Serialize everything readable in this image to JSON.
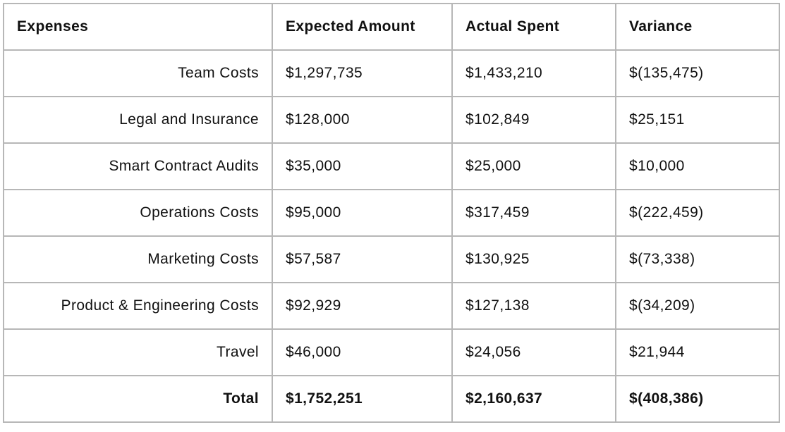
{
  "table": {
    "headers": [
      "Expenses",
      "Expected Amount",
      "Actual Spent",
      "Variance"
    ],
    "rows": [
      {
        "expense": "Team Costs",
        "expected": "$1,297,735",
        "actual": "$1,433,210",
        "variance": "$(135,475)"
      },
      {
        "expense": "Legal and Insurance",
        "expected": "$128,000",
        "actual": "$102,849",
        "variance": "$25,151"
      },
      {
        "expense": "Smart Contract Audits",
        "expected": "$35,000",
        "actual": "$25,000",
        "variance": "$10,000"
      },
      {
        "expense": "Operations Costs",
        "expected": "$95,000",
        "actual": "$317,459",
        "variance": "$(222,459)"
      },
      {
        "expense": "Marketing Costs",
        "expected": "$57,587",
        "actual": "$130,925",
        "variance": "$(73,338)"
      },
      {
        "expense": "Product & Engineering Costs",
        "expected": "$92,929",
        "actual": "$127,138",
        "variance": "$(34,209)"
      },
      {
        "expense": "Travel",
        "expected": "$46,000",
        "actual": "$24,056",
        "variance": "$21,944"
      }
    ],
    "total": {
      "expense": "Total",
      "expected": "$1,752,251",
      "actual": "$2,160,637",
      "variance": "$(408,386)"
    }
  },
  "colors": {
    "border": "#b7b7b7",
    "text": "#111111",
    "background": "#ffffff"
  }
}
